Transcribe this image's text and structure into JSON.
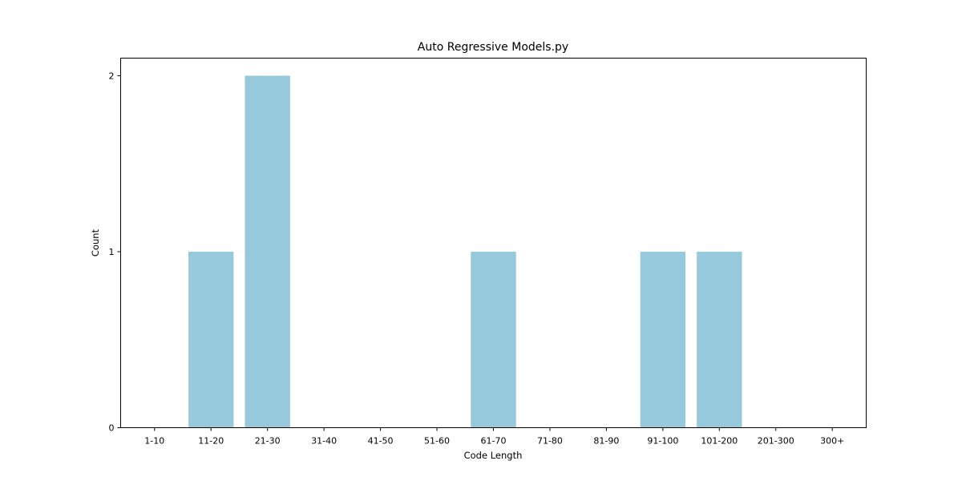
{
  "chart_data": {
    "type": "bar",
    "title": "Auto Regressive Models.py",
    "xlabel": "Code Length",
    "ylabel": "Count",
    "categories": [
      "1-10",
      "11-20",
      "21-30",
      "31-40",
      "41-50",
      "51-60",
      "61-70",
      "71-80",
      "81-90",
      "91-100",
      "101-200",
      "201-300",
      "300+"
    ],
    "values": [
      0,
      1,
      2,
      0,
      0,
      0,
      1,
      0,
      0,
      1,
      1,
      0,
      0
    ],
    "ylim": [
      0,
      2.1
    ],
    "yticks": [
      0,
      1,
      2
    ],
    "bar_color": "#96c9dc",
    "grid": false,
    "legend": "none"
  }
}
